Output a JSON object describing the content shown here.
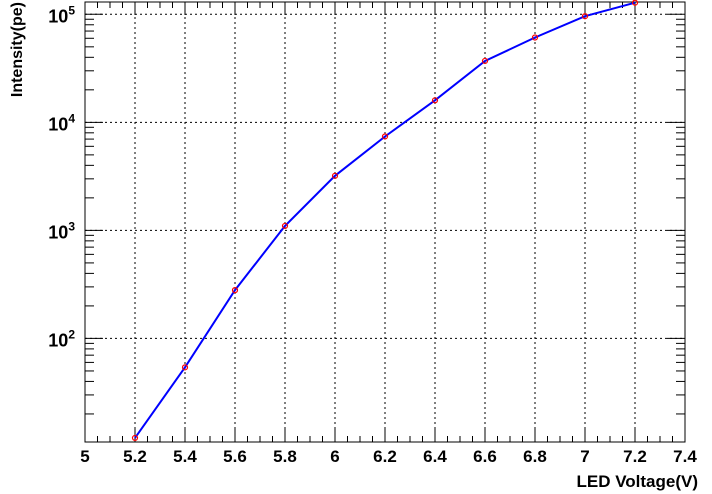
{
  "chart_data": {
    "type": "line",
    "title": "",
    "xlabel": "LED Voltage(V)",
    "ylabel": "Intensity(pe)",
    "xlim": [
      5.0,
      7.4
    ],
    "ylim": [
      11,
      130000
    ],
    "yscale": "log",
    "grid": true,
    "x_ticks": [
      "5",
      "5.2",
      "5.4",
      "5.6",
      "5.8",
      "6",
      "6.2",
      "6.4",
      "6.6",
      "6.8",
      "7",
      "7.2",
      "7.4"
    ],
    "y_ticks": [
      {
        "base": "10",
        "exp": "2",
        "value": 100
      },
      {
        "base": "10",
        "exp": "3",
        "value": 1000
      },
      {
        "base": "10",
        "exp": "4",
        "value": 10000
      },
      {
        "base": "10",
        "exp": "5",
        "value": 100000
      }
    ],
    "line_color": "#0000ff",
    "marker_color": "#ff0000",
    "series": [
      {
        "x": [
          5.2,
          5.4,
          5.6,
          5.8,
          6.0,
          6.2,
          6.4,
          6.6,
          6.8,
          7.0,
          7.2
        ],
        "y": [
          12,
          54,
          280,
          1100,
          3200,
          7400,
          16000,
          37000,
          61000,
          96000,
          128000
        ]
      }
    ]
  }
}
